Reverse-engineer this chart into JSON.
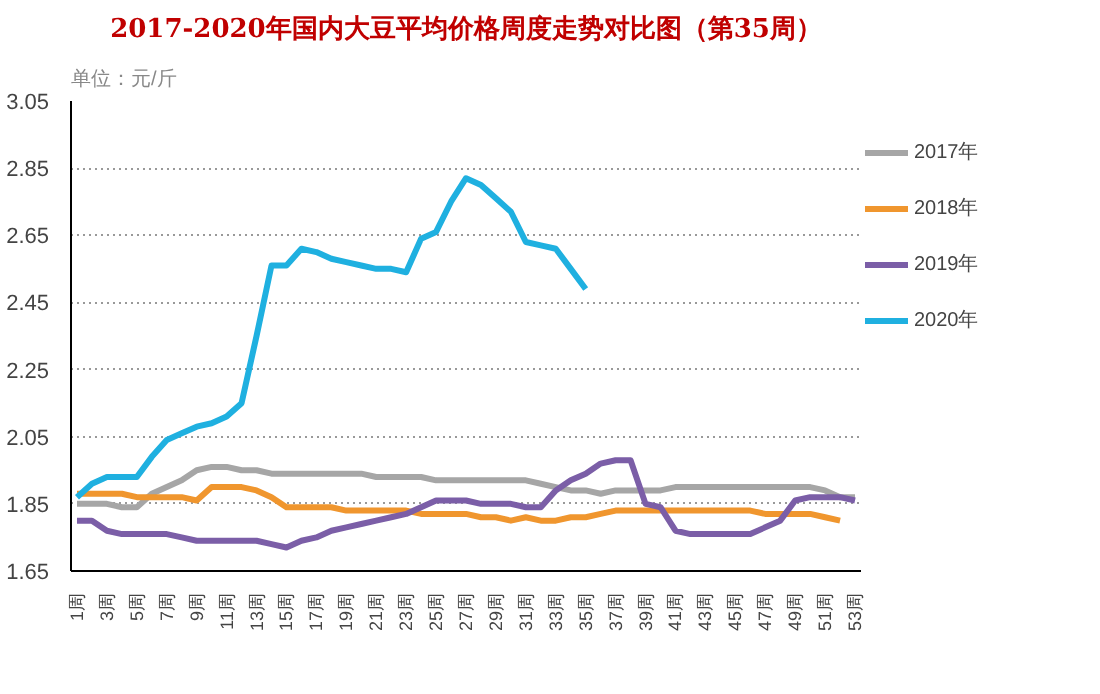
{
  "chart_data": {
    "type": "line",
    "title": "2017-2020年国内大豆平均价格周度走势对比图（第35周）",
    "ylabel": "单位：元/斤",
    "categories": [
      "1周",
      null,
      "3周",
      null,
      "5周",
      null,
      "7周",
      null,
      "9周",
      null,
      "11周",
      null,
      "13周",
      null,
      "15周",
      null,
      "17周",
      null,
      "19周",
      null,
      "21周",
      null,
      "23周",
      null,
      "25周",
      null,
      "27周",
      null,
      "29周",
      null,
      "31周",
      null,
      "33周",
      null,
      "35周",
      null,
      "37周",
      null,
      "39周",
      null,
      "41周",
      null,
      "43周",
      null,
      "45周",
      null,
      "47周",
      null,
      "49周",
      null,
      "51周",
      null,
      "53周"
    ],
    "series": [
      {
        "name": "2017年",
        "color": "#a6a6a6",
        "values": [
          1.85,
          1.85,
          1.85,
          1.84,
          1.84,
          1.88,
          1.9,
          1.92,
          1.95,
          1.96,
          1.96,
          1.95,
          1.95,
          1.94,
          1.94,
          1.94,
          1.94,
          1.94,
          1.94,
          1.94,
          1.93,
          1.93,
          1.93,
          1.93,
          1.92,
          1.92,
          1.92,
          1.92,
          1.92,
          1.92,
          1.92,
          1.91,
          1.9,
          1.89,
          1.89,
          1.88,
          1.89,
          1.89,
          1.89,
          1.89,
          1.9,
          1.9,
          1.9,
          1.9,
          1.9,
          1.9,
          1.9,
          1.9,
          1.9,
          1.9,
          1.89,
          1.87,
          1.87
        ]
      },
      {
        "name": "2018年",
        "color": "#f0962e",
        "values": [
          1.88,
          1.88,
          1.88,
          1.88,
          1.87,
          1.87,
          1.87,
          1.87,
          1.86,
          1.9,
          1.9,
          1.9,
          1.89,
          1.87,
          1.84,
          1.84,
          1.84,
          1.84,
          1.83,
          1.83,
          1.83,
          1.83,
          1.83,
          1.82,
          1.82,
          1.82,
          1.82,
          1.81,
          1.81,
          1.8,
          1.81,
          1.8,
          1.8,
          1.81,
          1.81,
          1.82,
          1.83,
          1.83,
          1.83,
          1.83,
          1.83,
          1.83,
          1.83,
          1.83,
          1.83,
          1.83,
          1.82,
          1.82,
          1.82,
          1.82,
          1.81,
          1.8,
          null
        ]
      },
      {
        "name": "2019年",
        "color": "#7b5ea7",
        "values": [
          1.8,
          1.8,
          1.77,
          1.76,
          1.76,
          1.76,
          1.76,
          1.75,
          1.74,
          1.74,
          1.74,
          1.74,
          1.74,
          1.73,
          1.72,
          1.74,
          1.75,
          1.77,
          1.78,
          1.79,
          1.8,
          1.81,
          1.82,
          1.84,
          1.86,
          1.86,
          1.86,
          1.85,
          1.85,
          1.85,
          1.84,
          1.84,
          1.89,
          1.92,
          1.94,
          1.97,
          1.98,
          1.98,
          1.85,
          1.84,
          1.77,
          1.76,
          1.76,
          1.76,
          1.76,
          1.76,
          1.78,
          1.8,
          1.86,
          1.87,
          1.87,
          1.87,
          1.86
        ]
      },
      {
        "name": "2020年",
        "color": "#1fb0e0",
        "values": [
          1.87,
          1.91,
          1.93,
          1.93,
          1.93,
          1.99,
          2.04,
          2.06,
          2.08,
          2.09,
          2.11,
          2.15,
          2.35,
          2.56,
          2.56,
          2.61,
          2.6,
          2.58,
          2.57,
          2.56,
          2.55,
          2.55,
          2.54,
          2.64,
          2.66,
          2.75,
          2.82,
          2.8,
          2.76,
          2.72,
          2.63,
          2.62,
          2.61,
          2.55,
          2.49,
          null,
          null,
          null,
          null,
          null,
          null,
          null,
          null,
          null,
          null,
          null,
          null,
          null,
          null,
          null,
          null,
          null,
          null
        ]
      }
    ],
    "ylim": [
      1.65,
      3.05
    ],
    "yticks": [
      1.65,
      1.85,
      2.05,
      2.25,
      2.45,
      2.65,
      2.85,
      3.05
    ],
    "grid": "y",
    "legend": "right"
  }
}
